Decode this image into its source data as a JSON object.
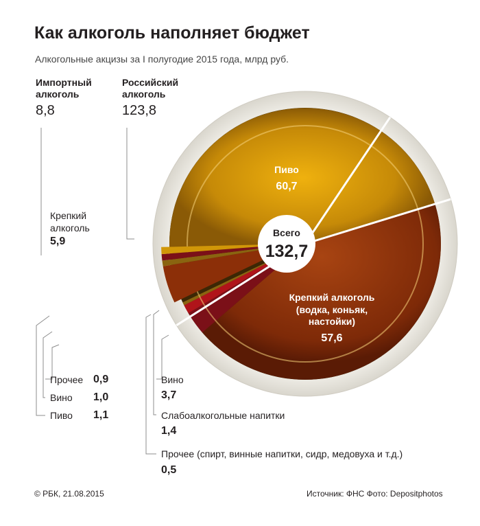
{
  "title": "Как алкоголь наполняет бюджет",
  "subtitle": "Алкогольные акцизы за I полугодие 2015 года, млрд руб.",
  "groups": {
    "import": {
      "name": "Импортный\nалкоголь",
      "value": "8,8"
    },
    "russian": {
      "name": "Российский\nалкоголь",
      "value": "123,8"
    }
  },
  "center": {
    "label": "Всего",
    "value": "132,7"
  },
  "chart_data": {
    "type": "pie",
    "title": "Как алкоголь наполняет бюджет",
    "subtitle": "Алкогольные акцизы за I полугодие 2015 года, млрд руб.",
    "unit": "млрд руб.",
    "total": 132.7,
    "groups": [
      {
        "name": "Российский алкоголь",
        "total": 123.8,
        "slices": [
          {
            "name": "Пиво",
            "value": 60.7
          },
          {
            "name": "Крепкий алкоголь (водка, коньяк, настойки)",
            "value": 57.6
          },
          {
            "name": "Вино",
            "value": 3.7
          },
          {
            "name": "Слабоалкогольные напитки",
            "value": 1.4
          },
          {
            "name": "Прочее (спирт, винные напитки, сидр, медовуха и т.д.)",
            "value": 0.5
          }
        ]
      },
      {
        "name": "Импортный алкоголь",
        "total": 8.8,
        "slices": [
          {
            "name": "Крепкий алкоголь",
            "value": 5.9
          },
          {
            "name": "Прочее",
            "value": 0.9
          },
          {
            "name": "Вино",
            "value": 1.0
          },
          {
            "name": "Пиво",
            "value": 1.1
          }
        ]
      }
    ]
  },
  "labels": {
    "beer_ru": {
      "name": "Пиво",
      "value": "60,7"
    },
    "strong_ru": {
      "line1": "Крепкий алкоголь",
      "line2": "(водка, коньяк,",
      "line3": "настойки)",
      "value": "57,6"
    },
    "wine_ru": {
      "name": "Вино",
      "value": "3,7"
    },
    "light_ru": {
      "name": "Слабоалкогольные напитки",
      "value": "1,4"
    },
    "other_ru": {
      "name": "Прочее (спирт, винные напитки, сидр, медовуха и т.д.)",
      "value": "0,5"
    },
    "strong_imp": {
      "name": "Крепкий\nалкоголь",
      "value": "5,9"
    },
    "other_imp": {
      "name": "Прочее",
      "value": "0,9"
    },
    "wine_imp": {
      "name": "Вино",
      "value": "1,0"
    },
    "beer_imp": {
      "name": "Пиво",
      "value": "1,1"
    }
  },
  "footer": {
    "copyright": "© РБК, 21.08.2015",
    "source": "Источник: ФНС   Фото: Depositphotos"
  },
  "colors": {
    "beer": "#d19708",
    "strong": "#8c2f08",
    "wine": "#7b1018",
    "light": "#b0141a",
    "other": "#8a6410"
  }
}
